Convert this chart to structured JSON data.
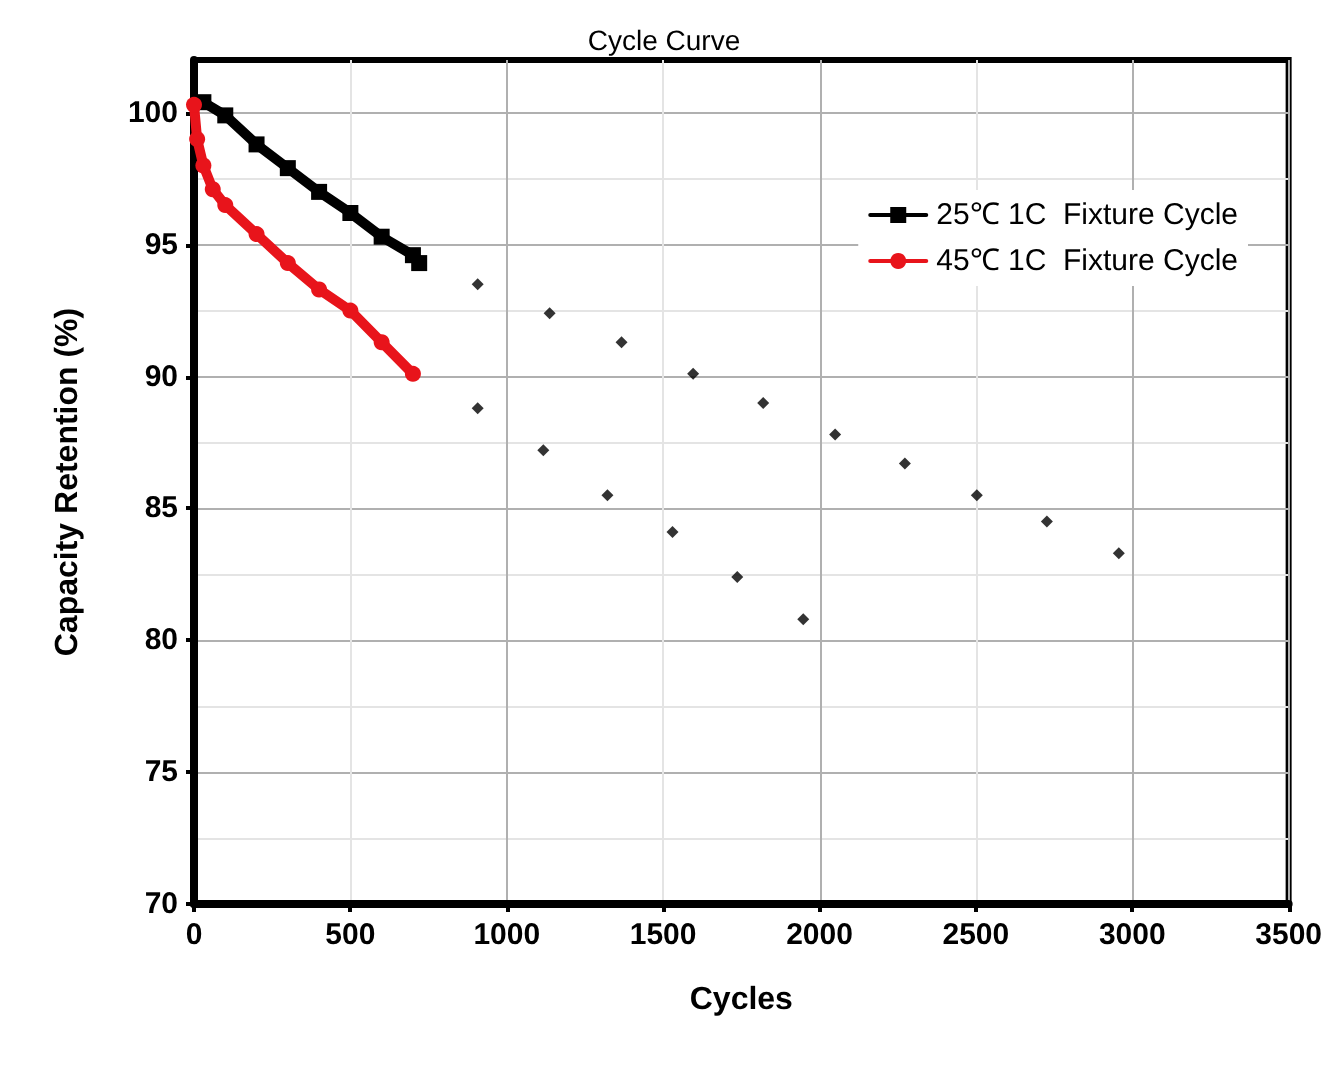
{
  "chart_data": {
    "type": "line",
    "title": "Cycle Curve",
    "xlabel": "Cycles",
    "ylabel": "Capacity Retention (%)",
    "xlim": [
      0,
      3500
    ],
    "xticks": [
      0,
      500,
      1000,
      1500,
      2000,
      2500,
      3000,
      3500
    ],
    "ylim": [
      70,
      102
    ],
    "yticks": [
      70,
      75,
      80,
      85,
      90,
      95,
      100
    ],
    "grid": true,
    "legend": "top right",
    "series": [
      {
        "name": "25℃ 1C  Fixture Cycle",
        "color": "#000000",
        "marker": "square",
        "x": [
          30,
          100,
          200,
          300,
          400,
          500,
          600,
          700,
          720
        ],
        "values": [
          100.4,
          99.9,
          98.8,
          97.9,
          97.0,
          96.2,
          95.3,
          94.6,
          94.3
        ]
      },
      {
        "name": "45℃ 1C  Fixture Cycle",
        "color": "#e8141b",
        "marker": "circle",
        "x": [
          0,
          10,
          30,
          60,
          100,
          200,
          300,
          400,
          500,
          600,
          700
        ],
        "values": [
          100.3,
          99.0,
          98.0,
          97.1,
          96.5,
          95.4,
          94.3,
          93.3,
          92.5,
          91.3,
          90.1
        ]
      },
      {
        "type": "scatter",
        "color": "#000000",
        "marker": "diamond",
        "x": [
          907,
          1137,
          1367,
          1596,
          1820,
          2050,
          2273,
          2503,
          2727,
          2957
        ],
        "values": [
          93.5,
          92.4,
          91.3,
          90.1,
          89.0,
          87.8,
          86.7,
          85.5,
          84.5,
          83.3
        ]
      },
      {
        "type": "scatter",
        "color": "#000000",
        "marker": "diamond",
        "x": [
          907,
          1117,
          1322,
          1530,
          1737,
          1948
        ],
        "values": [
          88.8,
          87.2,
          85.5,
          84.1,
          82.4,
          80.8
        ]
      }
    ]
  }
}
